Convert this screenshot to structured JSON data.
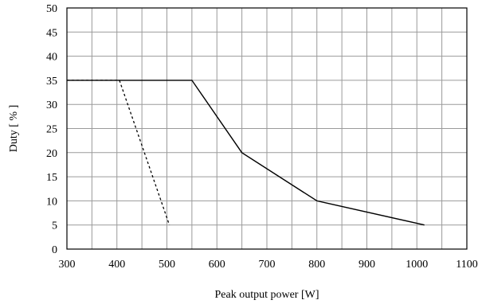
{
  "chart_data": {
    "type": "line",
    "title": "",
    "xlabel": "Peak output power [W]",
    "ylabel": "Duty [ % ]",
    "xlim": [
      300,
      1100
    ],
    "ylim": [
      0,
      50
    ],
    "x_ticks": [
      300,
      400,
      500,
      600,
      700,
      800,
      900,
      1000,
      1100
    ],
    "y_ticks": [
      0,
      5,
      10,
      15,
      20,
      25,
      30,
      35,
      40,
      45,
      50
    ],
    "x_minor_gridlines": [
      350,
      450,
      550,
      650,
      750,
      850,
      950,
      1050
    ],
    "grid": true,
    "grid_color": "#9a9a9a",
    "line_color": "#000000",
    "legend": "none",
    "series": [
      {
        "style": "solid",
        "points": [
          [
            300,
            35
          ],
          [
            550,
            35
          ],
          [
            650,
            20
          ],
          [
            800,
            10
          ],
          [
            1015,
            5
          ]
        ]
      },
      {
        "style": "dashed",
        "points": [
          [
            300,
            35
          ],
          [
            405,
            35
          ],
          [
            505,
            5
          ]
        ]
      }
    ]
  }
}
